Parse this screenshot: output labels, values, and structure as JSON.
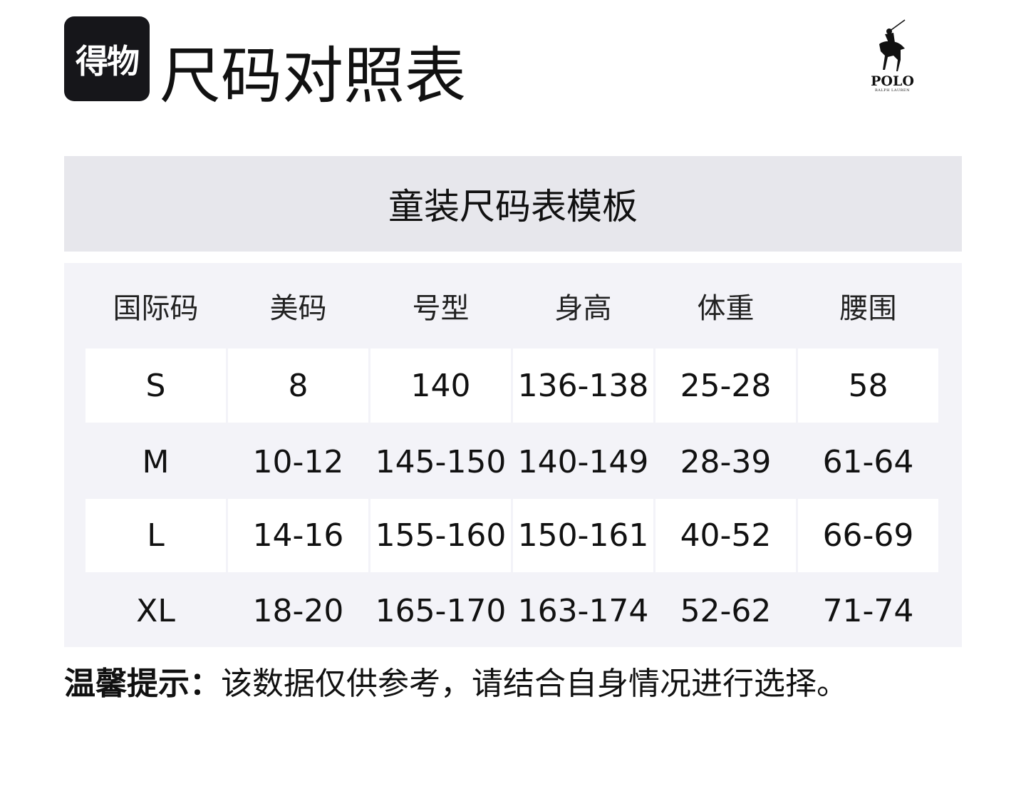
{
  "brand": {
    "logo_text": "得物"
  },
  "header": {
    "title": "尺码对照表"
  },
  "polo_logo": {
    "text": "POLO",
    "subtext": "RALPH LAUREN"
  },
  "table": {
    "title": "童装尺码表模板",
    "columns": [
      "国际码",
      "美码",
      "号型",
      "身高",
      "体重",
      "腰围"
    ],
    "rows": [
      [
        "S",
        "8",
        "140",
        "136-138",
        "25-28",
        "58"
      ],
      [
        "M",
        "10-12",
        "145-150",
        "140-149",
        "28-39",
        "61-64"
      ],
      [
        "L",
        "14-16",
        "155-160",
        "150-161",
        "40-52",
        "66-69"
      ],
      [
        "XL",
        "18-20",
        "165-170",
        "163-174",
        "52-62",
        "71-74"
      ]
    ]
  },
  "note": {
    "label": "温馨提示：",
    "text": "该数据仅供参考，请结合自身情况进行选择。"
  }
}
